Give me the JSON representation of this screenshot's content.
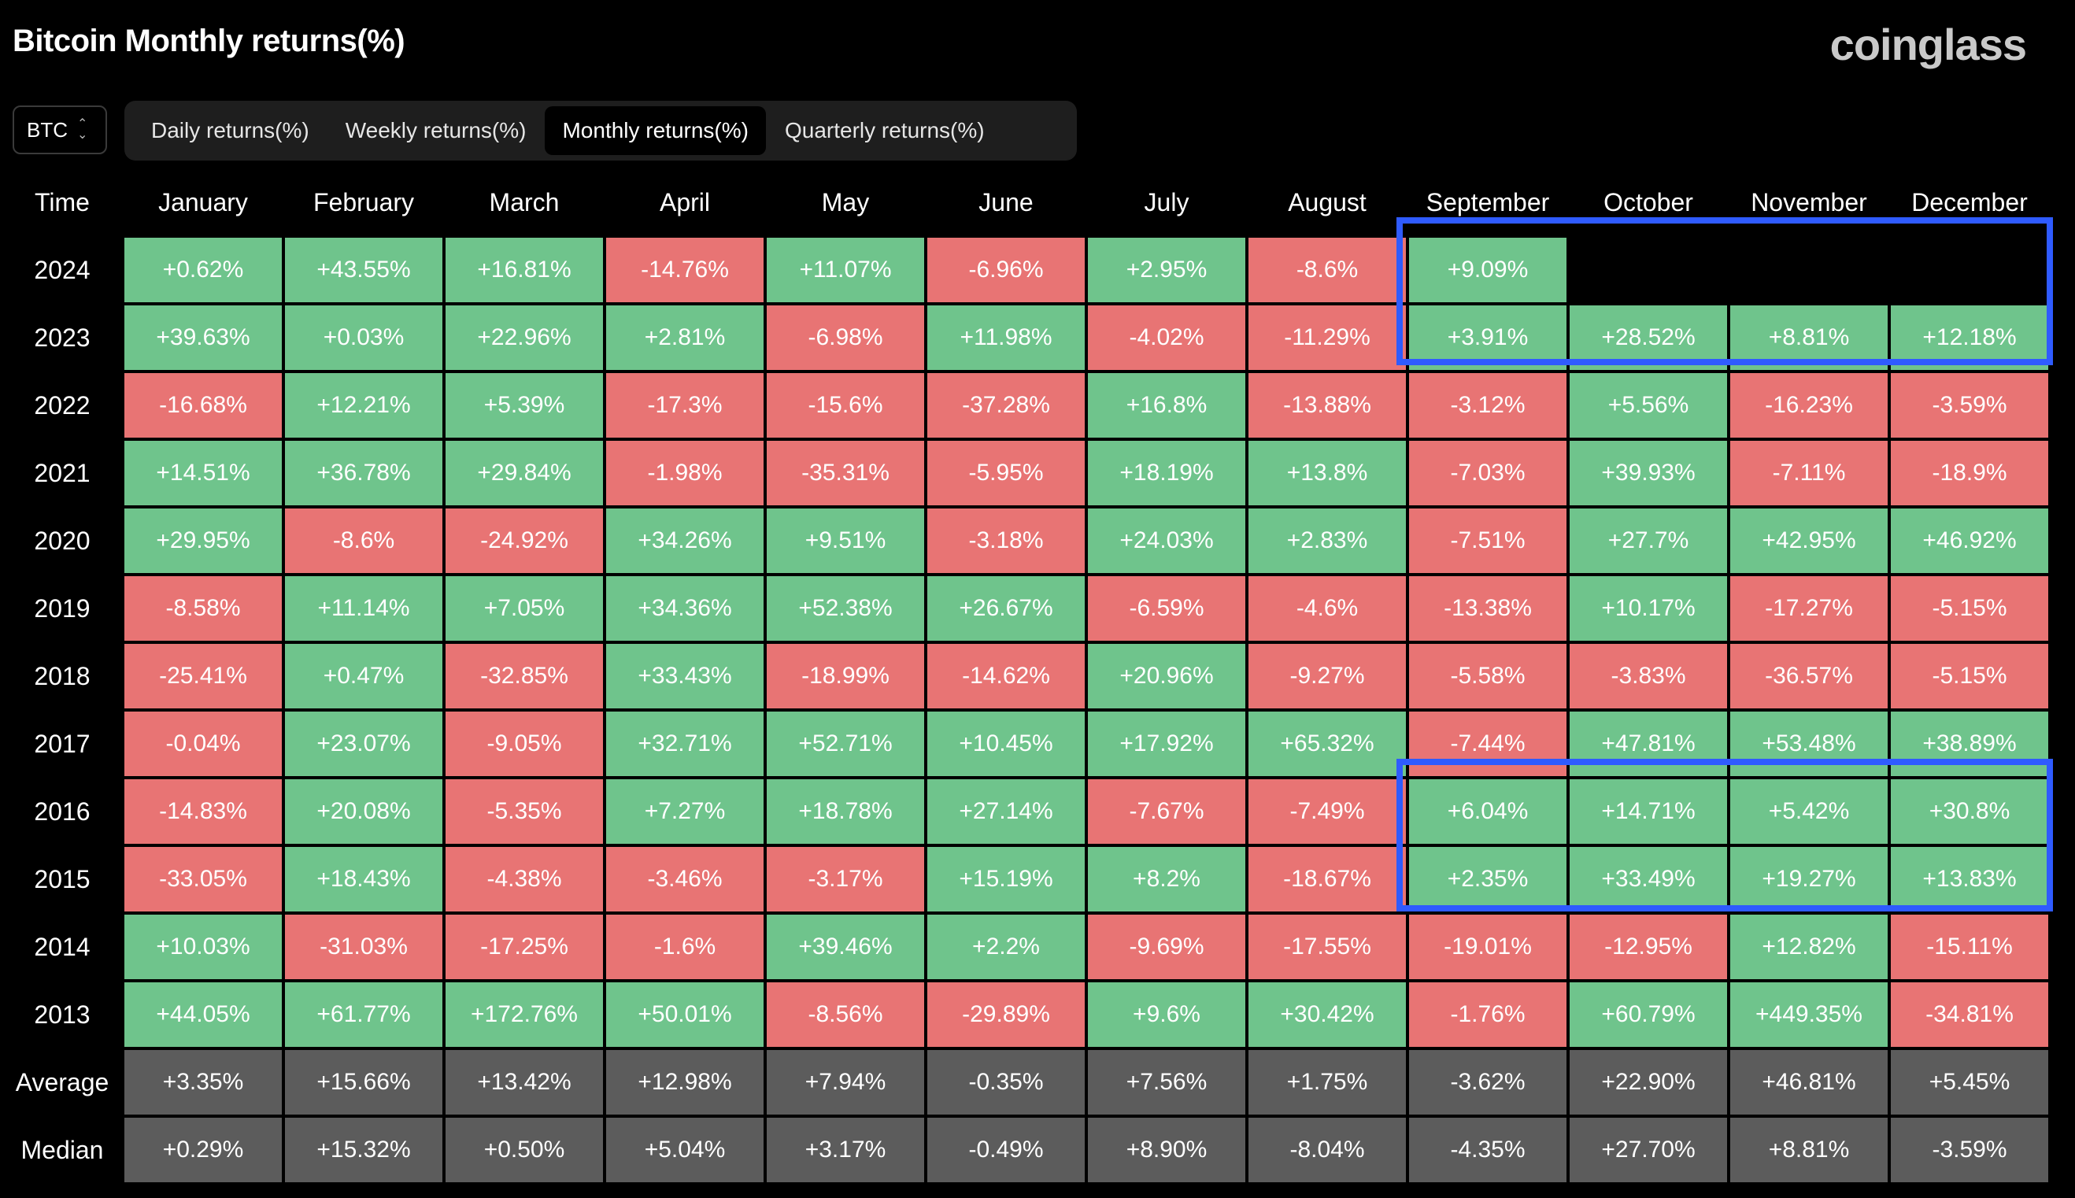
{
  "title": "Bitcoin Monthly returns(%)",
  "logo": "coinglass",
  "asset_select": {
    "value": "BTC",
    "icon": "chevron-up-down-icon"
  },
  "tabs": [
    {
      "label": "Daily returns(%)",
      "active": false
    },
    {
      "label": "Weekly returns(%)",
      "active": false
    },
    {
      "label": "Monthly returns(%)",
      "active": true
    },
    {
      "label": "Quarterly returns(%)",
      "active": false
    }
  ],
  "colors": {
    "positive": "#6fc48c",
    "negative": "#e87474",
    "stat": "#5c5c5c",
    "highlight": "#2f5bff"
  },
  "table": {
    "time_header": "Time",
    "months": [
      "January",
      "February",
      "March",
      "April",
      "May",
      "June",
      "July",
      "August",
      "September",
      "October",
      "November",
      "December"
    ],
    "rows": [
      {
        "year": "2024",
        "values": [
          "+0.62%",
          "+43.55%",
          "+16.81%",
          "-14.76%",
          "+11.07%",
          "-6.96%",
          "+2.95%",
          "-8.6%",
          "+9.09%",
          "",
          "",
          ""
        ]
      },
      {
        "year": "2023",
        "values": [
          "+39.63%",
          "+0.03%",
          "+22.96%",
          "+2.81%",
          "-6.98%",
          "+11.98%",
          "-4.02%",
          "-11.29%",
          "+3.91%",
          "+28.52%",
          "+8.81%",
          "+12.18%"
        ]
      },
      {
        "year": "2022",
        "values": [
          "-16.68%",
          "+12.21%",
          "+5.39%",
          "-17.3%",
          "-15.6%",
          "-37.28%",
          "+16.8%",
          "-13.88%",
          "-3.12%",
          "+5.56%",
          "-16.23%",
          "-3.59%"
        ]
      },
      {
        "year": "2021",
        "values": [
          "+14.51%",
          "+36.78%",
          "+29.84%",
          "-1.98%",
          "-35.31%",
          "-5.95%",
          "+18.19%",
          "+13.8%",
          "-7.03%",
          "+39.93%",
          "-7.11%",
          "-18.9%"
        ]
      },
      {
        "year": "2020",
        "values": [
          "+29.95%",
          "-8.6%",
          "-24.92%",
          "+34.26%",
          "+9.51%",
          "-3.18%",
          "+24.03%",
          "+2.83%",
          "-7.51%",
          "+27.7%",
          "+42.95%",
          "+46.92%"
        ]
      },
      {
        "year": "2019",
        "values": [
          "-8.58%",
          "+11.14%",
          "+7.05%",
          "+34.36%",
          "+52.38%",
          "+26.67%",
          "-6.59%",
          "-4.6%",
          "-13.38%",
          "+10.17%",
          "-17.27%",
          "-5.15%"
        ]
      },
      {
        "year": "2018",
        "values": [
          "-25.41%",
          "+0.47%",
          "-32.85%",
          "+33.43%",
          "-18.99%",
          "-14.62%",
          "+20.96%",
          "-9.27%",
          "-5.58%",
          "-3.83%",
          "-36.57%",
          "-5.15%"
        ]
      },
      {
        "year": "2017",
        "values": [
          "-0.04%",
          "+23.07%",
          "-9.05%",
          "+32.71%",
          "+52.71%",
          "+10.45%",
          "+17.92%",
          "+65.32%",
          "-7.44%",
          "+47.81%",
          "+53.48%",
          "+38.89%"
        ]
      },
      {
        "year": "2016",
        "values": [
          "-14.83%",
          "+20.08%",
          "-5.35%",
          "+7.27%",
          "+18.78%",
          "+27.14%",
          "-7.67%",
          "-7.49%",
          "+6.04%",
          "+14.71%",
          "+5.42%",
          "+30.8%"
        ]
      },
      {
        "year": "2015",
        "values": [
          "-33.05%",
          "+18.43%",
          "-4.38%",
          "-3.46%",
          "-3.17%",
          "+15.19%",
          "+8.2%",
          "-18.67%",
          "+2.35%",
          "+33.49%",
          "+19.27%",
          "+13.83%"
        ]
      },
      {
        "year": "2014",
        "values": [
          "+10.03%",
          "-31.03%",
          "-17.25%",
          "-1.6%",
          "+39.46%",
          "+2.2%",
          "-9.69%",
          "-17.55%",
          "-19.01%",
          "-12.95%",
          "+12.82%",
          "-15.11%"
        ]
      },
      {
        "year": "2013",
        "values": [
          "+44.05%",
          "+61.77%",
          "+172.76%",
          "+50.01%",
          "-8.56%",
          "-29.89%",
          "+9.6%",
          "+30.42%",
          "-1.76%",
          "+60.79%",
          "+449.35%",
          "-34.81%"
        ]
      }
    ],
    "stats": [
      {
        "label": "Average",
        "values": [
          "+3.35%",
          "+15.66%",
          "+13.42%",
          "+12.98%",
          "+7.94%",
          "-0.35%",
          "+7.56%",
          "+1.75%",
          "-3.62%",
          "+22.90%",
          "+46.81%",
          "+5.45%"
        ]
      },
      {
        "label": "Median",
        "values": [
          "+0.29%",
          "+15.32%",
          "+0.50%",
          "+5.04%",
          "+3.17%",
          "-0.49%",
          "+8.90%",
          "-8.04%",
          "-4.35%",
          "+27.70%",
          "+8.81%",
          "-3.59%"
        ]
      }
    ]
  }
}
